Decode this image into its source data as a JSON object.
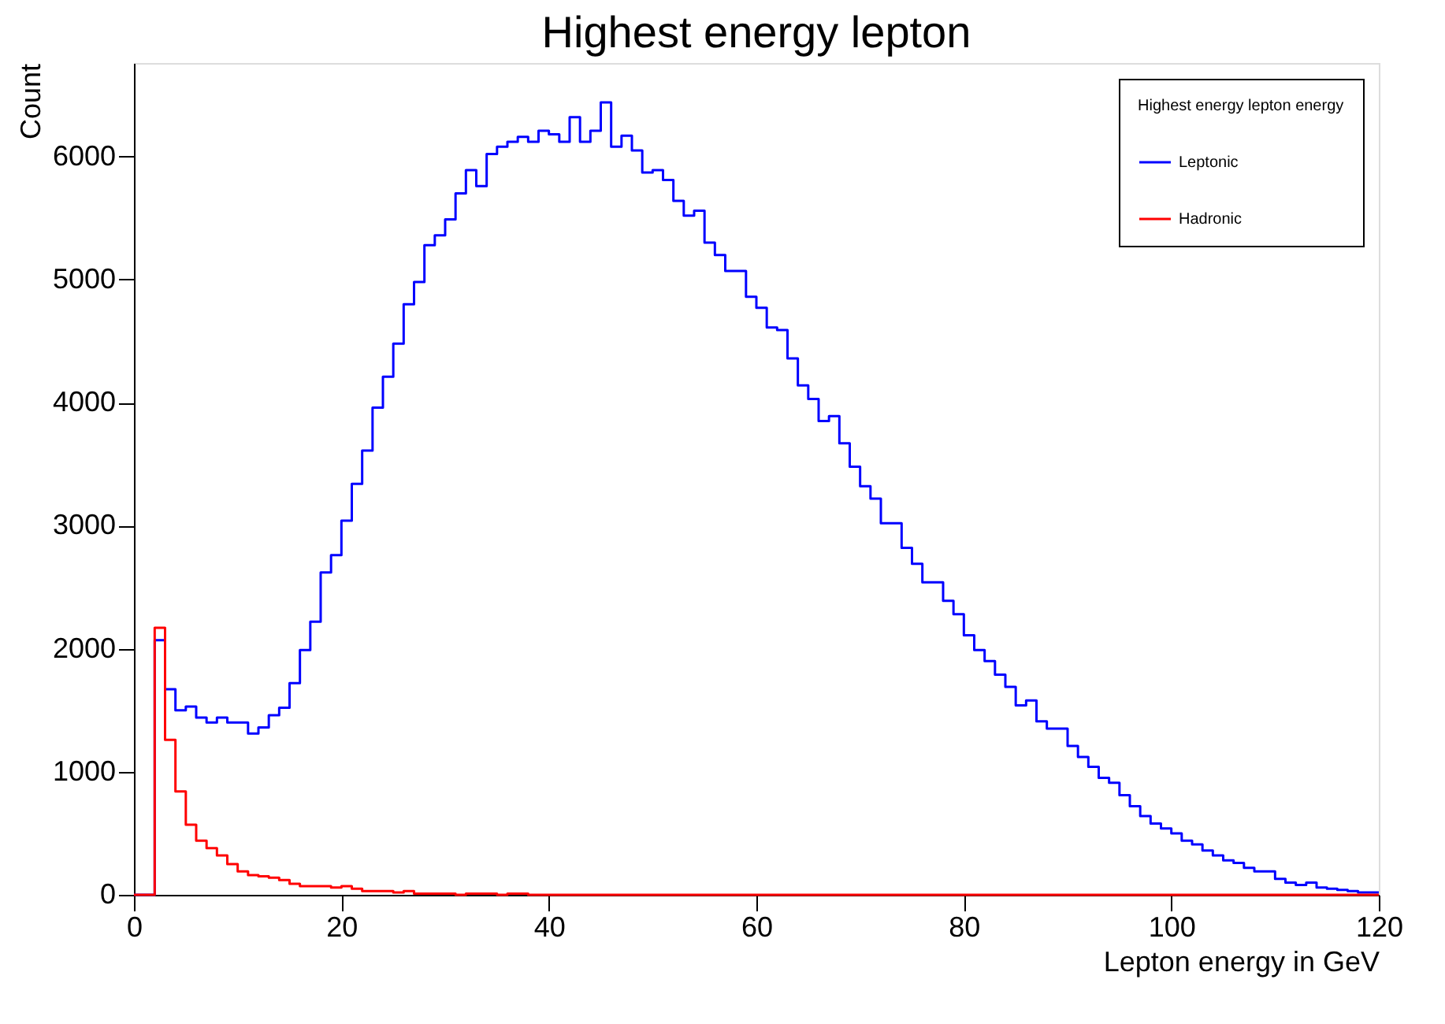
{
  "chart_data": {
    "type": "histogram",
    "title": "Highest energy lepton",
    "xlabel": "Lepton energy in GeV",
    "ylabel": "Count",
    "legend_title": "Highest energy lepton energy",
    "legend": "top right",
    "bins": [
      0,
      1,
      2,
      3,
      4,
      5,
      6,
      7,
      8,
      9,
      10,
      11,
      12,
      13,
      14,
      15,
      16,
      17,
      18,
      19,
      20,
      21,
      22,
      23,
      24,
      25,
      26,
      27,
      28,
      29,
      30,
      31,
      32,
      33,
      34,
      35,
      36,
      37,
      38,
      39,
      40,
      41,
      42,
      43,
      44,
      45,
      46,
      47,
      48,
      49,
      50,
      51,
      52,
      53,
      54,
      55,
      56,
      57,
      58,
      59,
      60,
      61,
      62,
      63,
      64,
      65,
      66,
      67,
      68,
      69,
      70,
      71,
      72,
      73,
      74,
      75,
      76,
      77,
      78,
      79,
      80,
      81,
      82,
      83,
      84,
      85,
      86,
      87,
      88,
      89,
      90,
      91,
      92,
      93,
      94,
      95,
      96,
      97,
      98,
      99,
      100,
      101,
      102,
      103,
      104,
      105,
      106,
      107,
      108,
      109,
      110,
      111,
      112,
      113,
      114,
      115,
      116,
      117,
      118,
      119,
      120
    ],
    "series": [
      {
        "name": "Leptonic",
        "color": "#0000ff",
        "values": [
          0,
          0,
          2070,
          1670,
          1500,
          1530,
          1440,
          1400,
          1440,
          1400,
          1400,
          1310,
          1360,
          1460,
          1520,
          1720,
          1990,
          2220,
          2620,
          2760,
          3040,
          3340,
          3610,
          3960,
          4210,
          4480,
          4800,
          4980,
          5280,
          5360,
          5490,
          5700,
          5890,
          5760,
          6020,
          6080,
          6120,
          6160,
          6120,
          6210,
          6180,
          6120,
          6320,
          6120,
          6210,
          6440,
          6080,
          6170,
          6050,
          5870,
          5890,
          5810,
          5640,
          5520,
          5560,
          5300,
          5200,
          5070,
          5070,
          4860,
          4770,
          4610,
          4590,
          4360,
          4140,
          4030,
          3850,
          3890,
          3670,
          3480,
          3320,
          3220,
          3020,
          3020,
          2820,
          2690,
          2540,
          2540,
          2390,
          2280,
          2110,
          1990,
          1900,
          1790,
          1690,
          1540,
          1580,
          1410,
          1350,
          1350,
          1210,
          1120,
          1040,
          950,
          910,
          810,
          720,
          640,
          580,
          540,
          500,
          440,
          410,
          360,
          320,
          280,
          260,
          220,
          190,
          190,
          130,
          100,
          80,
          100,
          60,
          50,
          40,
          30,
          20,
          20
        ]
      },
      {
        "name": "Hadronic",
        "color": "#ff0000",
        "values": [
          0,
          0,
          2170,
          1260,
          840,
          570,
          440,
          380,
          320,
          250,
          190,
          160,
          150,
          140,
          120,
          90,
          70,
          70,
          70,
          60,
          70,
          50,
          30,
          30,
          30,
          20,
          30,
          10,
          10,
          10,
          10,
          0,
          10,
          10,
          10,
          0,
          10,
          10,
          0,
          0,
          0,
          0,
          0,
          0,
          0,
          0,
          0,
          0,
          0,
          0,
          0,
          0,
          0,
          0,
          0,
          0,
          0,
          0,
          0,
          0,
          0,
          0,
          0,
          0,
          0,
          0,
          0,
          0,
          0,
          0,
          0,
          0,
          0,
          0,
          0,
          0,
          0,
          0,
          0,
          0,
          0,
          0,
          0,
          0,
          0,
          0,
          0,
          0,
          0,
          0,
          0,
          0,
          0,
          0,
          0,
          0,
          0,
          0,
          0,
          0,
          0,
          0,
          0,
          0,
          0,
          0,
          0,
          0,
          0,
          0,
          0,
          0,
          0,
          0,
          0,
          0,
          0,
          0,
          0,
          0
        ]
      }
    ],
    "xlim": [
      0,
      120
    ],
    "xticks": [
      0,
      20,
      40,
      60,
      80,
      100,
      120
    ],
    "ylim": [
      0,
      6760
    ],
    "yticks": [
      0,
      1000,
      2000,
      3000,
      4000,
      5000,
      6000
    ]
  }
}
